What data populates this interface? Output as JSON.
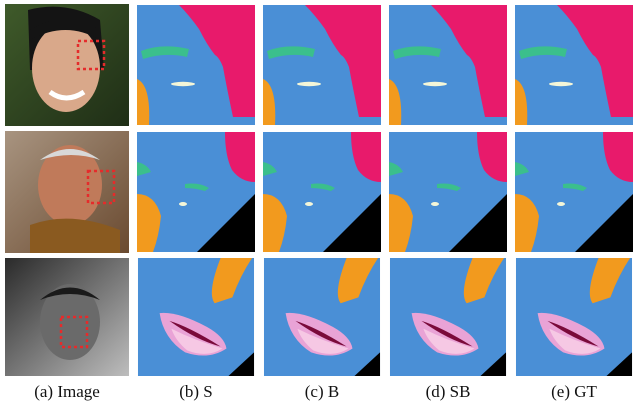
{
  "captions": [
    "(a) Image",
    "(b) S",
    "(c) B",
    "(d) SB",
    "(e) GT"
  ]
}
